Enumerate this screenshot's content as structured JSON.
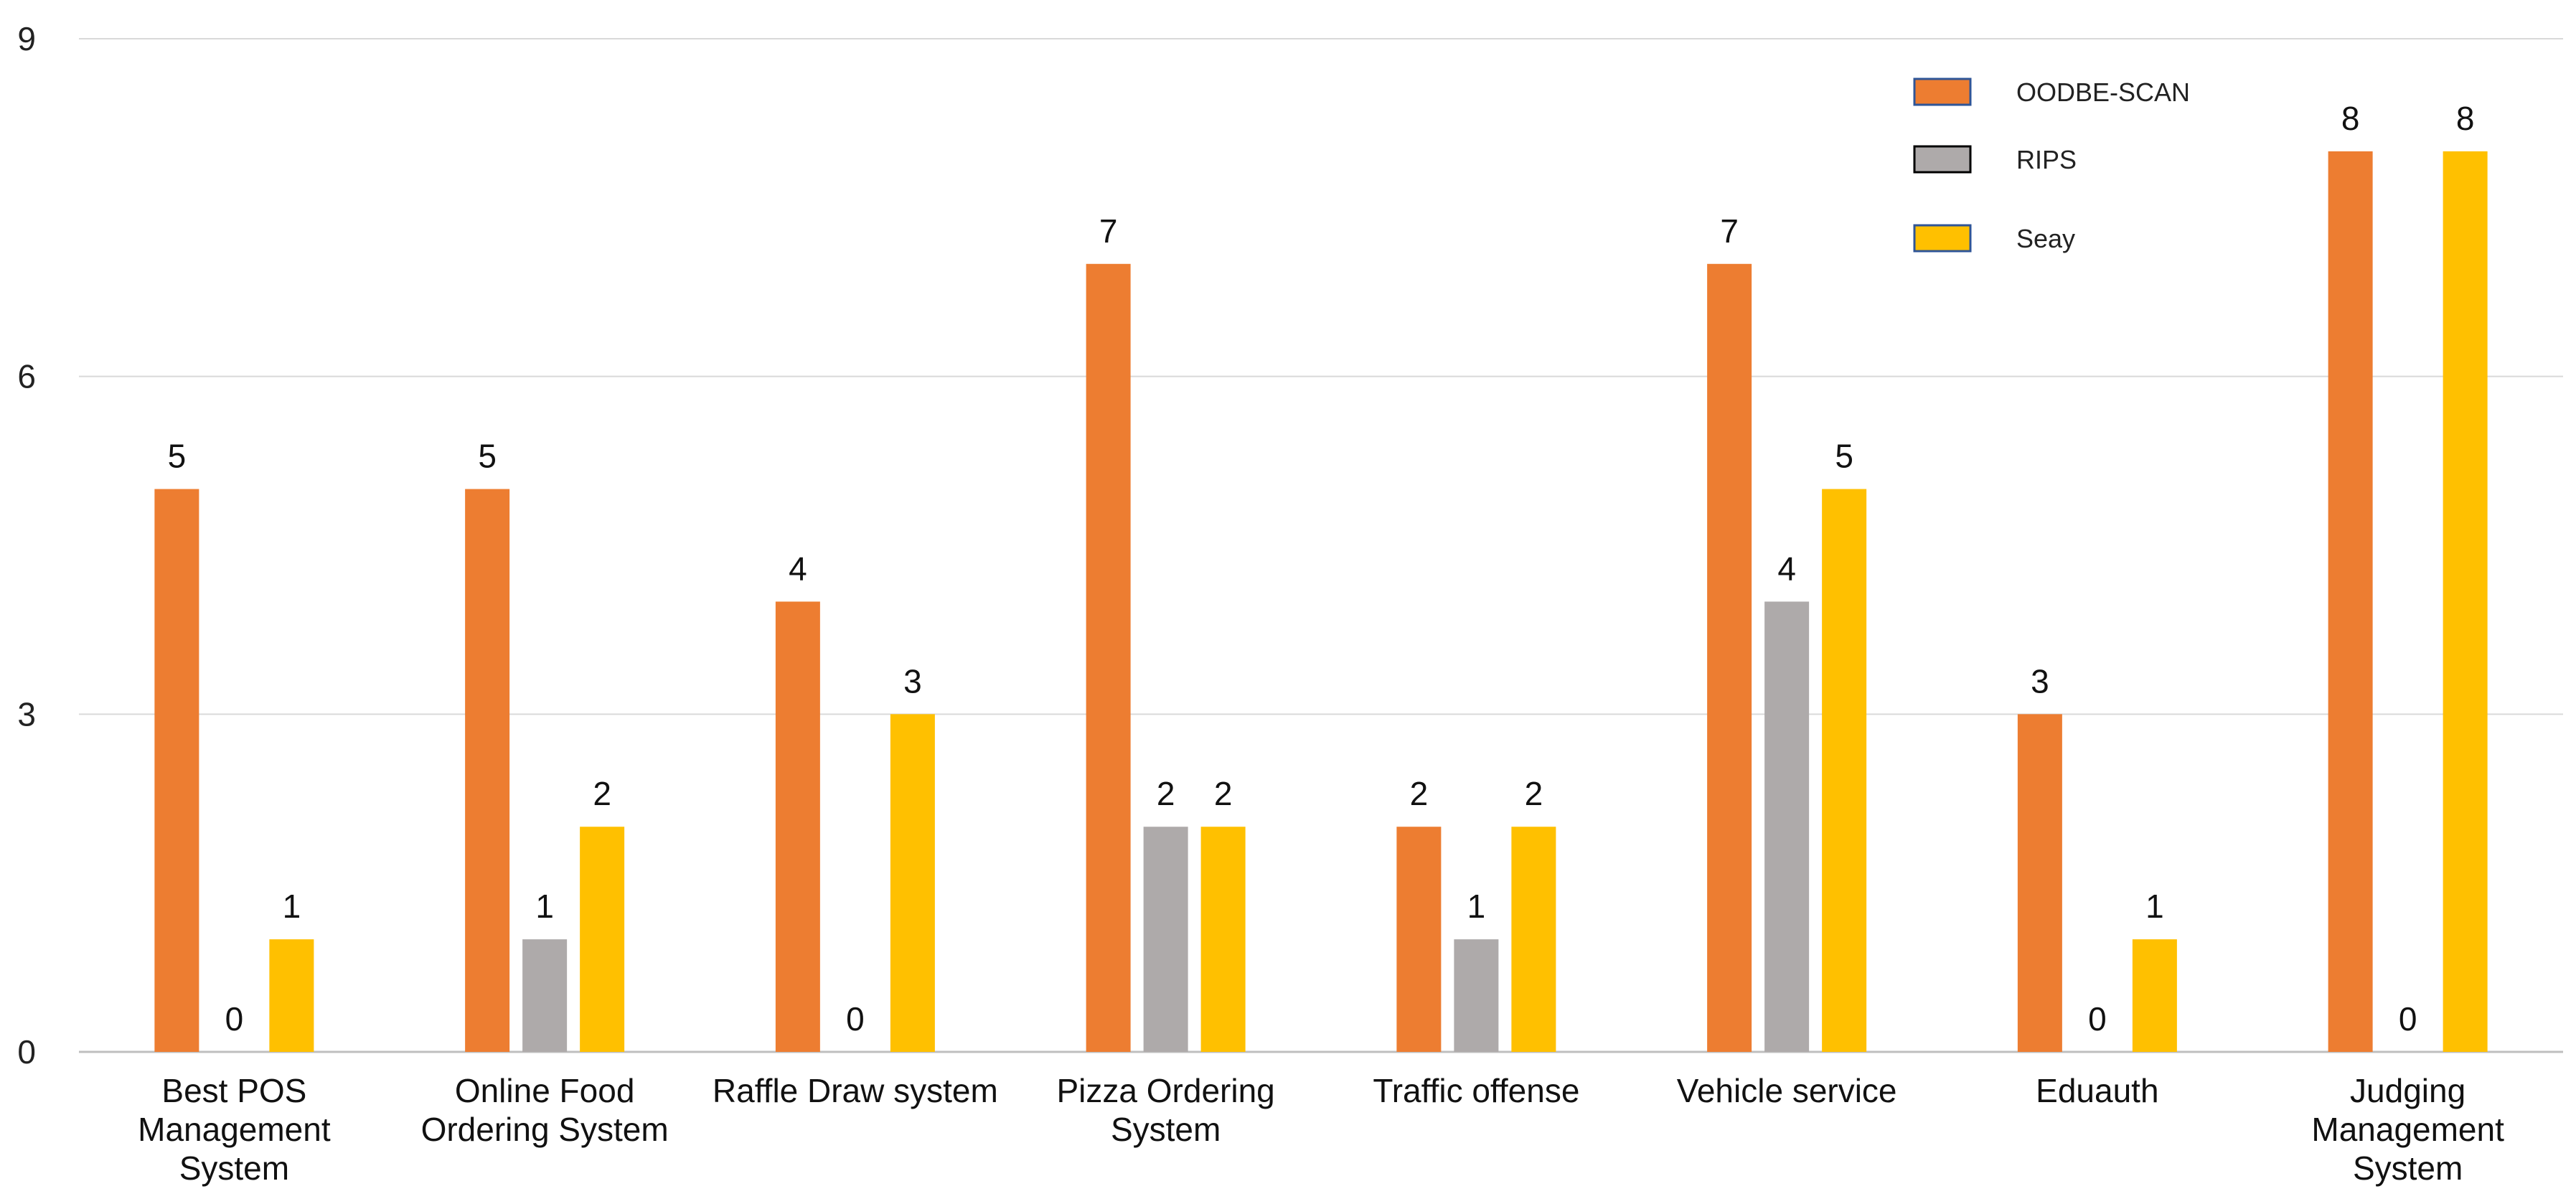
{
  "chart_data": {
    "type": "bar",
    "title": "",
    "xlabel": "",
    "ylabel": "",
    "ylim": [
      0,
      9
    ],
    "yticks": [
      0,
      3,
      6,
      9
    ],
    "grid": true,
    "legend_position": "top-right",
    "categories": [
      [
        "Best POS",
        "Management",
        "System"
      ],
      [
        "Online Food",
        "Ordering System"
      ],
      [
        "Raffle Draw system"
      ],
      [
        "Pizza Ordering",
        "System"
      ],
      [
        "Traffic offense"
      ],
      [
        "Vehicle service"
      ],
      [
        "Eduauth"
      ],
      [
        "Judging",
        "Management",
        "System"
      ]
    ],
    "series": [
      {
        "name": "OODBE-SCAN",
        "color": "#ED7D31",
        "legend_border": "#2F5597",
        "values": [
          5,
          5,
          4,
          7,
          2,
          7,
          3,
          8
        ]
      },
      {
        "name": "RIPS",
        "color": "#AEAAAA",
        "legend_border": "#000000",
        "values": [
          0,
          1,
          0,
          2,
          1,
          4,
          0,
          0
        ]
      },
      {
        "name": "Seay",
        "color": "#FFC000",
        "legend_border": "#2F5597",
        "values": [
          1,
          2,
          3,
          2,
          2,
          5,
          1,
          8
        ]
      }
    ]
  }
}
